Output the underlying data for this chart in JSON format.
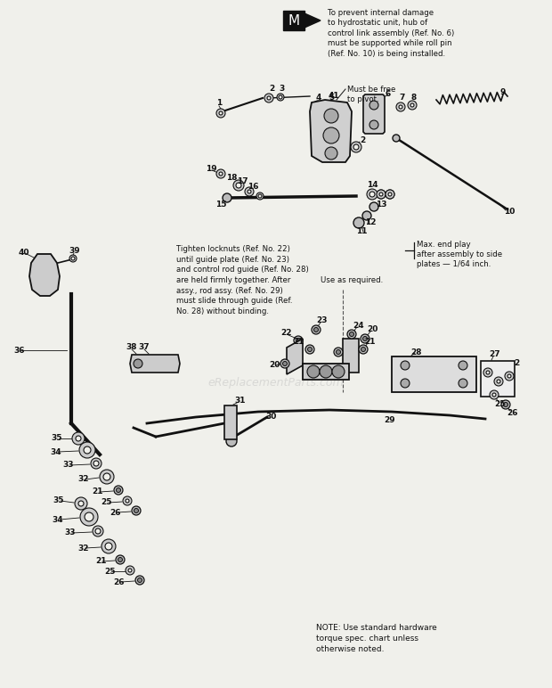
{
  "bg_color": "#f0f0eb",
  "note_top": "To prevent internal damage\nto hydrostatic unit, hub of\ncontrol link assembly (Ref. No. 6)\nmust be supported while roll pin\n(Ref. No. 10) is being installed.",
  "note_pivot": "Must be free\nto pivot.",
  "note_tighten": "Tighten locknuts (Ref. No. 22)\nuntil guide plate (Ref. No. 23)\nand control rod guide (Ref. No. 28)\nare held firmly together. After\nassy., rod assy. (Ref. No. 29)\nmust slide through guide (Ref.\nNo. 28) without binding.",
  "note_use": "Use as required.",
  "note_maxplay": "Max. end play\nafter assembly to side\nplates — 1/64 inch.",
  "note_bottom": "NOTE: Use standard hardware\ntorque spec. chart unless\notherwise noted.",
  "watermark": "eReplacementParts.com"
}
